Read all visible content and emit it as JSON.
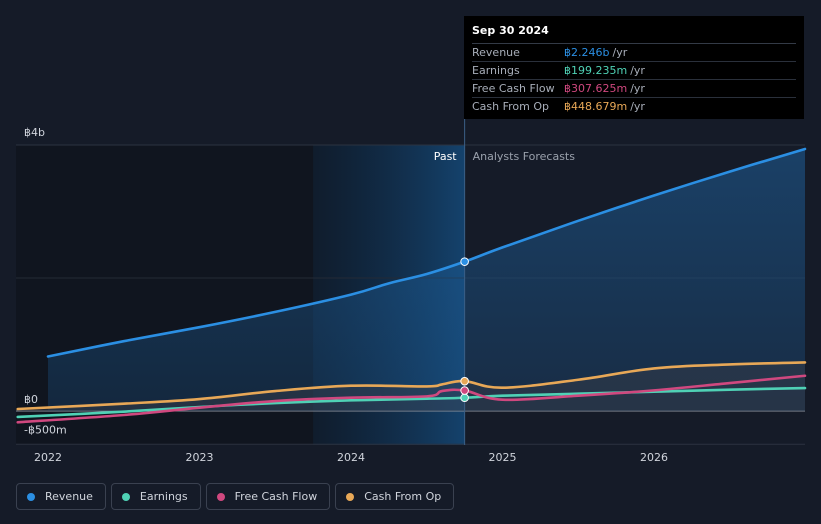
{
  "chart_data": {
    "type": "line",
    "currency_symbol": "฿",
    "y_ticks": [
      {
        "value": 4000,
        "label": "฿4b"
      },
      {
        "value": 0,
        "label": "฿0"
      },
      {
        "value": -500,
        "label": "-฿500m"
      }
    ],
    "ylim": [
      -500,
      4000
    ],
    "x_ticks": [
      {
        "value": 2022.0,
        "label": "2022"
      },
      {
        "value": 2023.0,
        "label": "2023"
      },
      {
        "value": 2024.0,
        "label": "2024"
      },
      {
        "value": 2025.0,
        "label": "2025"
      },
      {
        "value": 2026.0,
        "label": "2026"
      }
    ],
    "xlim": [
      2021.8,
      2027.0
    ],
    "past_band_start": 2023.75,
    "divider_x": 2024.75,
    "past_label": "Past",
    "forecast_label": "Analysts Forecasts",
    "series": [
      {
        "name": "Revenue",
        "color": "#2b8fe3",
        "fill": true,
        "x": [
          2022.0,
          2022.5,
          2023.0,
          2023.5,
          2024.0,
          2024.25,
          2024.5,
          2024.75,
          2025.0,
          2025.5,
          2026.0,
          2026.5,
          2027.0
        ],
        "y": [
          820,
          1050,
          1260,
          1490,
          1750,
          1920,
          2060,
          2246,
          2460,
          2860,
          3240,
          3600,
          3940
        ]
      },
      {
        "name": "Earnings",
        "color": "#4fd1b5",
        "fill": false,
        "x": [
          2021.8,
          2022.5,
          2023.0,
          2023.5,
          2024.0,
          2024.5,
          2024.75,
          2025.0,
          2025.5,
          2026.0,
          2026.5,
          2027.0
        ],
        "y": [
          -90,
          -10,
          60,
          120,
          160,
          185,
          199.235,
          230,
          260,
          290,
          320,
          345
        ]
      },
      {
        "name": "Free Cash Flow",
        "color": "#d0487f",
        "fill": false,
        "x": [
          2021.8,
          2022.5,
          2023.0,
          2023.5,
          2024.0,
          2024.5,
          2024.6,
          2024.75,
          2025.0,
          2025.5,
          2026.0,
          2026.5,
          2027.0
        ],
        "y": [
          -170,
          -60,
          50,
          150,
          200,
          220,
          300,
          307.625,
          170,
          230,
          310,
          420,
          530
        ]
      },
      {
        "name": "Cash From Op",
        "color": "#e8a857",
        "fill": false,
        "x": [
          2021.8,
          2022.5,
          2023.0,
          2023.5,
          2024.0,
          2024.5,
          2024.6,
          2024.75,
          2025.0,
          2025.5,
          2026.0,
          2026.5,
          2027.0
        ],
        "y": [
          30,
          110,
          180,
          300,
          380,
          370,
          400,
          448.679,
          350,
          470,
          640,
          700,
          730
        ]
      }
    ]
  },
  "tooltip": {
    "date": "Sep 30 2024",
    "rows": [
      {
        "label": "Revenue",
        "value": "฿2.246b",
        "unit": "/yr",
        "color": "#2b8fe3"
      },
      {
        "label": "Earnings",
        "value": "฿199.235m",
        "unit": "/yr",
        "color": "#4fd1b5"
      },
      {
        "label": "Free Cash Flow",
        "value": "฿307.625m",
        "unit": "/yr",
        "color": "#d0487f"
      },
      {
        "label": "Cash From Op",
        "value": "฿448.679m",
        "unit": "/yr",
        "color": "#e8a857"
      }
    ]
  },
  "legend": [
    {
      "label": "Revenue",
      "color": "#2b8fe3"
    },
    {
      "label": "Earnings",
      "color": "#4fd1b5"
    },
    {
      "label": "Free Cash Flow",
      "color": "#d0487f"
    },
    {
      "label": "Cash From Op",
      "color": "#e8a857"
    }
  ]
}
